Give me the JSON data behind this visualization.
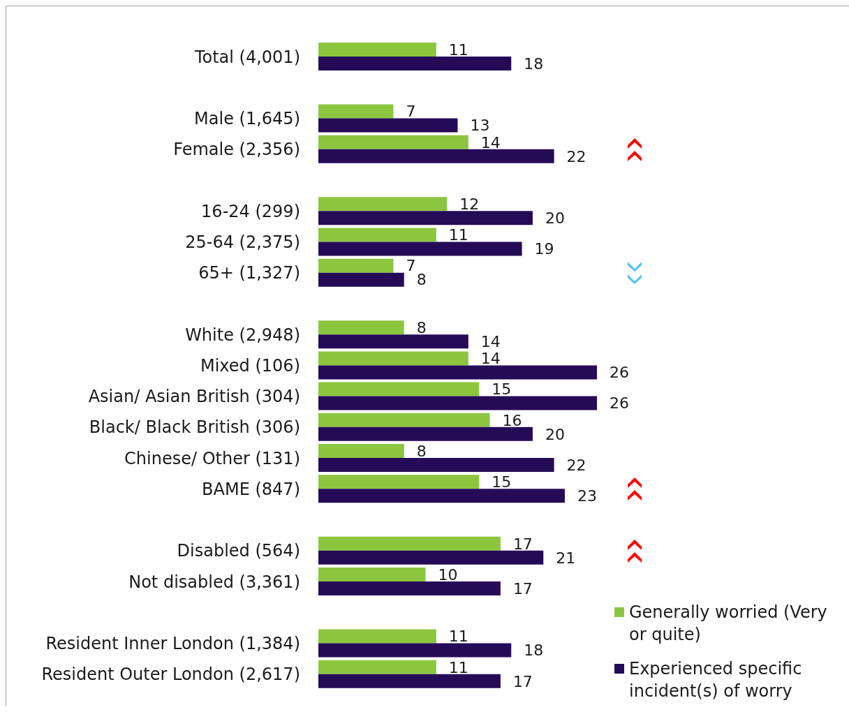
{
  "chart_data": {
    "type": "bar",
    "orientation": "horizontal",
    "categories": [
      "Total (4,001)",
      null,
      "Male (1,645)",
      "Female (2,356)",
      null,
      "16-24 (299)",
      "25-64 (2,375)",
      "65+ (1,327)",
      null,
      "White (2,948)",
      "Mixed (106)",
      "Asian/ Asian British (304)",
      "Black/ Black British (306)",
      "Chinese/ Other (131)",
      "BAME (847)",
      null,
      "Disabled (564)",
      "Not disabled (3,361)",
      null,
      "Resident Inner London (1,384)",
      "Resident Outer London (2,617)"
    ],
    "series": [
      {
        "name": "Generally worried (Very or quite)",
        "color": "#8cc63f",
        "values": [
          11,
          null,
          7,
          14,
          null,
          12,
          11,
          7,
          null,
          8,
          14,
          15,
          16,
          8,
          15,
          null,
          17,
          10,
          null,
          11,
          11
        ]
      },
      {
        "name": "Experienced specific incident(s) of worry",
        "color": "#250b57",
        "values": [
          18,
          null,
          13,
          22,
          null,
          20,
          19,
          8,
          null,
          14,
          26,
          26,
          20,
          22,
          23,
          null,
          21,
          17,
          null,
          18,
          17
        ]
      }
    ],
    "data_labels": true,
    "legend": "bottom right",
    "tick_labels": "y"
  }
}
